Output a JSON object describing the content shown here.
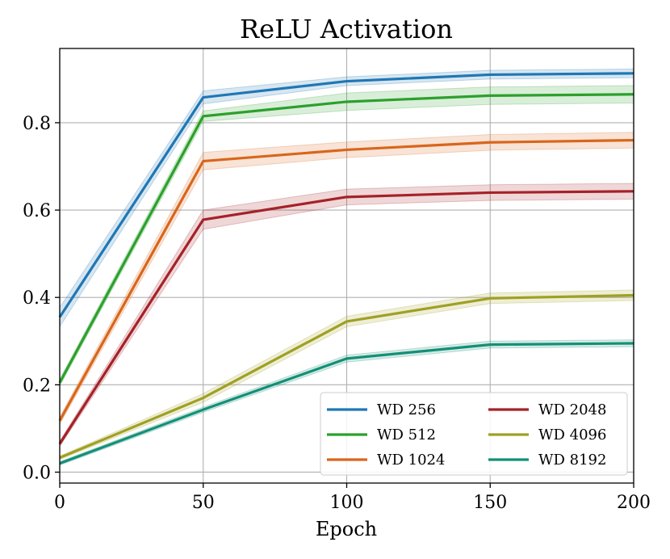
{
  "chart_data": {
    "type": "line",
    "title": "ReLU Activation",
    "xlabel": "Epoch",
    "ylabel": "",
    "xlim": [
      0,
      200
    ],
    "ylim": [
      -0.025,
      0.97
    ],
    "xticks": [
      0,
      50,
      100,
      150,
      200
    ],
    "yticks": [
      0.0,
      0.2,
      0.4,
      0.6,
      0.8
    ],
    "ytick_labels": [
      "0.0",
      "0.2",
      "0.4",
      "0.6",
      "0.8"
    ],
    "grid": true,
    "legend_position": "lower-right",
    "legend_columns": 2,
    "x": [
      0,
      50,
      100,
      150,
      200
    ],
    "series": [
      {
        "name": "WD 256",
        "color": "#1f77b4",
        "values": [
          0.355,
          0.858,
          0.895,
          0.91,
          0.913
        ],
        "band": [
          0.022,
          0.015,
          0.01,
          0.01,
          0.01
        ]
      },
      {
        "name": "WD 512",
        "color": "#2ca02c",
        "values": [
          0.205,
          0.815,
          0.848,
          0.862,
          0.865
        ],
        "band": [
          0.008,
          0.012,
          0.02,
          0.02,
          0.02
        ]
      },
      {
        "name": "WD 1024",
        "color": "#d9661a",
        "values": [
          0.118,
          0.712,
          0.738,
          0.755,
          0.76
        ],
        "band": [
          0.008,
          0.02,
          0.018,
          0.018,
          0.018
        ]
      },
      {
        "name": "WD 2048",
        "color": "#a52228",
        "values": [
          0.065,
          0.578,
          0.63,
          0.64,
          0.643
        ],
        "band": [
          0.006,
          0.022,
          0.018,
          0.018,
          0.018
        ]
      },
      {
        "name": "WD 4096",
        "color": "#9fa023",
        "values": [
          0.033,
          0.17,
          0.345,
          0.398,
          0.405
        ],
        "band": [
          0.004,
          0.01,
          0.012,
          0.012,
          0.012
        ]
      },
      {
        "name": "WD 8192",
        "color": "#148f77",
        "values": [
          0.02,
          0.143,
          0.26,
          0.292,
          0.295
        ],
        "band": [
          0.004,
          0.006,
          0.008,
          0.008,
          0.008
        ]
      }
    ]
  }
}
